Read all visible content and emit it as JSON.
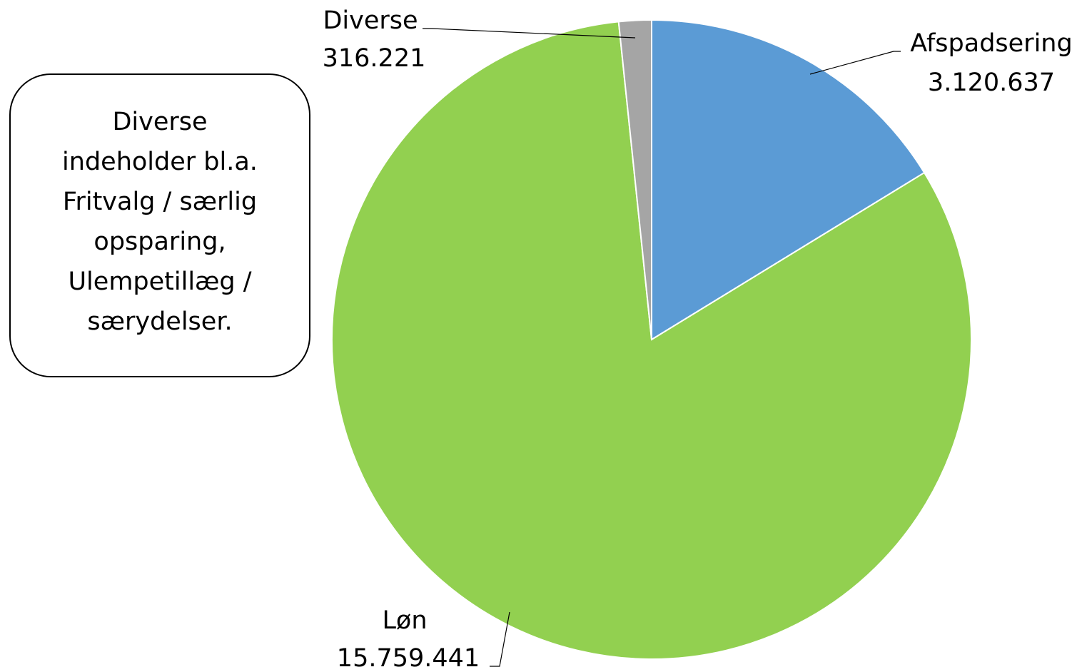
{
  "chart_data": {
    "type": "pie",
    "title": "",
    "slices": [
      {
        "label": "Afspadsering",
        "value_label": "3.120.637",
        "value": 3120637,
        "color": "#5b9bd5"
      },
      {
        "label": "Løn",
        "value_label": "15.759.441",
        "value": 15759441,
        "color": "#92d050"
      },
      {
        "label": "Diverse",
        "value_label": "316.221",
        "value": 316221,
        "color": "#a5a5a5"
      }
    ],
    "start_angle": "12 o'clock",
    "direction": "clockwise",
    "legend": "none"
  },
  "note": {
    "text": "Diverse\nindeholder bl.a.\nFritvalg / særlig\nopsparing,\nUlempetillæg /\nsærydelser."
  }
}
